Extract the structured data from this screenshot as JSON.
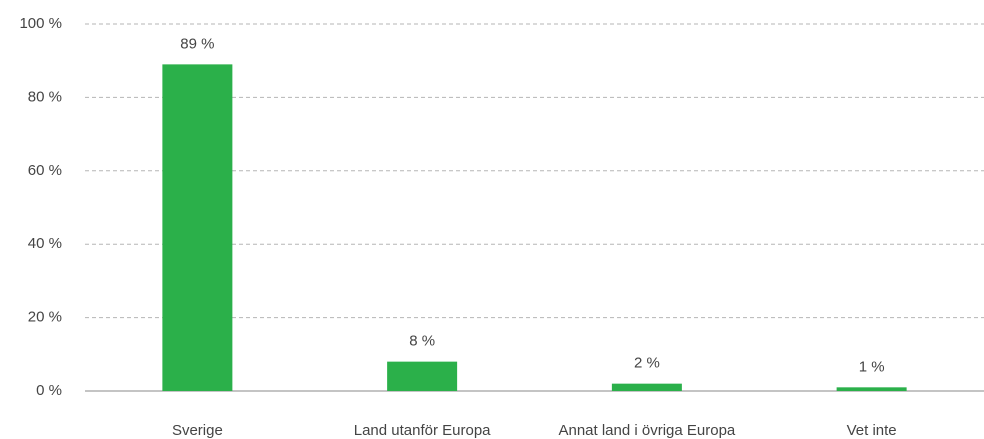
{
  "chart_data": {
    "type": "bar",
    "categories": [
      "Sverige",
      "Land utanför Europa",
      "Annat land i övriga Europa",
      "Vet inte"
    ],
    "values": [
      89,
      8,
      2,
      1
    ],
    "value_labels": [
      "89 %",
      "8 %",
      "2 %",
      "1 %"
    ],
    "color": "#2bb04a",
    "ylim": [
      0,
      100
    ],
    "yticks": [
      {
        "value": 0,
        "label": "0 %"
      },
      {
        "value": 20,
        "label": "20 %"
      },
      {
        "value": 40,
        "label": "40 %"
      },
      {
        "value": 60,
        "label": "60 %"
      },
      {
        "value": 80,
        "label": "80 %"
      },
      {
        "value": 100,
        "label": "100 %"
      }
    ],
    "grid": true
  }
}
